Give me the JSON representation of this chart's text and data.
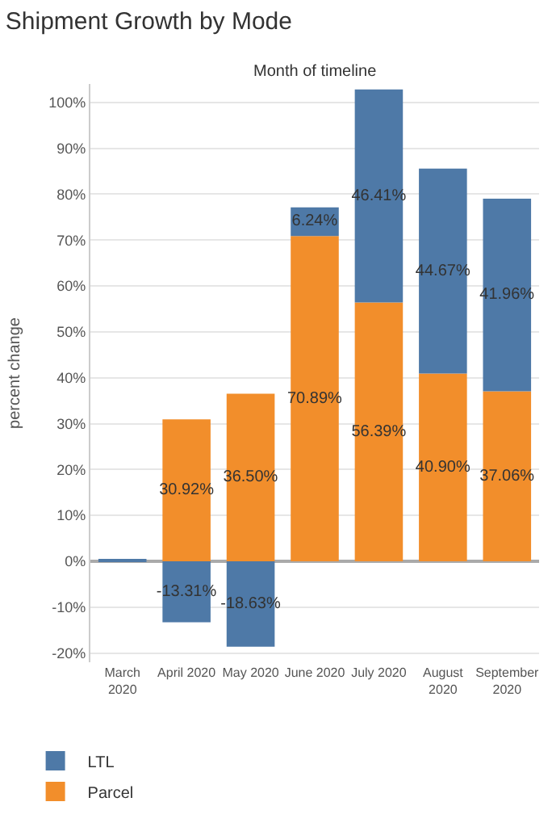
{
  "chart_data": {
    "type": "bar",
    "title": "Shipment Growth by Mode",
    "subtitle": "Month of timeline",
    "ylabel": "percent change",
    "categories": [
      "March\n2020",
      "April 2020",
      "May 2020",
      "June 2020",
      "July 2020",
      "August\n2020",
      "September\n2020"
    ],
    "stacked": true,
    "series": [
      {
        "name": "Parcel",
        "color": "#f28e2b",
        "values": [
          null,
          30.92,
          36.5,
          70.89,
          56.39,
          40.9,
          37.06
        ],
        "value_labels": [
          null,
          "30.92%",
          "36.50%",
          "70.89%",
          "56.39%",
          "40.90%",
          "37.06%"
        ]
      },
      {
        "name": "LTL",
        "color": "#4e79a7",
        "values": [
          0.2,
          -13.31,
          -18.63,
          6.24,
          46.41,
          44.67,
          41.96
        ],
        "value_labels": [
          null,
          "-13.31%",
          "-18.63%",
          "6.24%",
          "46.41%",
          "44.67%",
          "41.96%"
        ]
      }
    ],
    "ylim": [
      -22,
      104
    ],
    "yticks": [
      {
        "value": -20,
        "label": "-20%"
      },
      {
        "value": -10,
        "label": "-10%"
      },
      {
        "value": 0,
        "label": "0%"
      },
      {
        "value": 10,
        "label": "10%"
      },
      {
        "value": 20,
        "label": "20%"
      },
      {
        "value": 30,
        "label": "30%"
      },
      {
        "value": 40,
        "label": "40%"
      },
      {
        "value": 50,
        "label": "50%"
      },
      {
        "value": 60,
        "label": "60%"
      },
      {
        "value": 70,
        "label": "70%"
      },
      {
        "value": 80,
        "label": "80%"
      },
      {
        "value": 90,
        "label": "90%"
      },
      {
        "value": 100,
        "label": "100%"
      }
    ],
    "grid": "y",
    "legend": "bottom left"
  }
}
